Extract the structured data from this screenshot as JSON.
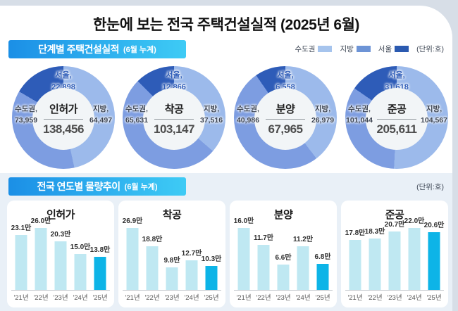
{
  "page": {
    "title": "한눈에 보는 전국 주택건설실적 (2025년 6월)"
  },
  "section1": {
    "header": "단계별 주택건설실적",
    "header_sub": "(6월 누계)",
    "unit": "(단위:호)",
    "legend": {
      "items": [
        {
          "label": "수도권",
          "color": "#a6c4ed"
        },
        {
          "label": "지방",
          "color": "#6d94d6"
        },
        {
          "label": "서울",
          "color": "#2b5ab0"
        }
      ]
    },
    "donut_colors": {
      "sudogwon": "#7d9de1",
      "jibang": "#9cbaeb",
      "seoul": "#2e5cb8",
      "hole": "#f2f5f7"
    },
    "donuts": [
      {
        "name": "인허가",
        "total": "138,456",
        "left_label": "수도권,",
        "left_value": "73,959",
        "right_label": "지방,",
        "right_value": "64,497",
        "top_label": "서울,",
        "top_value": "22,898"
      },
      {
        "name": "착공",
        "total": "103,147",
        "left_label": "수도권,",
        "left_value": "65,631",
        "right_label": "지방,",
        "right_value": "37,516",
        "top_label": "서울,",
        "top_value": "12,866"
      },
      {
        "name": "분양",
        "total": "67,965",
        "left_label": "수도권,",
        "left_value": "40,986",
        "right_label": "지방,",
        "right_value": "26,979",
        "top_label": "서울,",
        "top_value": "6,558"
      },
      {
        "name": "준공",
        "total": "205,611",
        "left_label": "수도권,",
        "left_value": "101,044",
        "right_label": "지방,",
        "right_value": "104,567",
        "top_label": "서울,",
        "top_value": "31,618"
      }
    ]
  },
  "section2": {
    "header": "전국 연도별 물량추이",
    "header_sub": "(6월 누계)",
    "unit": "(단위:호)",
    "bar_color": "#bfe8f2",
    "highlight_color": "#0db4e7"
  },
  "chart_data": [
    {
      "type": "pie",
      "title": "인허가",
      "labels": [
        "수도권",
        "지방",
        "서울"
      ],
      "values": [
        73959,
        64497,
        22898
      ],
      "total": 138456,
      "annotation": "서울 is shown as a dark sub-slice of 수도권"
    },
    {
      "type": "pie",
      "title": "착공",
      "labels": [
        "수도권",
        "지방",
        "서울"
      ],
      "values": [
        65631,
        37516,
        12866
      ],
      "total": 103147
    },
    {
      "type": "pie",
      "title": "분양",
      "labels": [
        "수도권",
        "지방",
        "서울"
      ],
      "values": [
        40986,
        26979,
        6558
      ],
      "total": 67965
    },
    {
      "type": "pie",
      "title": "준공",
      "labels": [
        "수도권",
        "지방",
        "서울"
      ],
      "values": [
        101044,
        104567,
        31618
      ],
      "total": 205611
    },
    {
      "type": "bar",
      "title": "인허가",
      "categories": [
        "'21년",
        "'22년",
        "'23년",
        "'24년",
        "'25년"
      ],
      "values": [
        23.1,
        26.0,
        20.3,
        15.0,
        13.8
      ],
      "value_labels": [
        "23.1만",
        "26.0만",
        "20.3만",
        "15.0만",
        "13.8만"
      ],
      "unit": "만",
      "highlight_index": 4
    },
    {
      "type": "bar",
      "title": "착공",
      "categories": [
        "'21년",
        "'22년",
        "'23년",
        "'24년",
        "'25년"
      ],
      "values": [
        26.9,
        18.8,
        9.8,
        12.7,
        10.3
      ],
      "value_labels": [
        "26.9만",
        "18.8만",
        "9.8만",
        "12.7만",
        "10.3만"
      ],
      "unit": "만",
      "highlight_index": 4
    },
    {
      "type": "bar",
      "title": "분양",
      "categories": [
        "'21년",
        "'22년",
        "'23년",
        "'24년",
        "'25년"
      ],
      "values": [
        16.0,
        11.7,
        6.6,
        11.2,
        6.8
      ],
      "value_labels": [
        "16.0만",
        "11.7만",
        "6.6만",
        "11.2만",
        "6.8만"
      ],
      "unit": "만",
      "highlight_index": 4
    },
    {
      "type": "bar",
      "title": "준공",
      "categories": [
        "'21년",
        "'22년",
        "'23년",
        "'24년",
        "'25년"
      ],
      "values": [
        17.8,
        18.3,
        20.7,
        22.0,
        20.6
      ],
      "value_labels": [
        "17.8만",
        "18.3만",
        "20.7만",
        "22.0만",
        "20.6만"
      ],
      "unit": "만",
      "highlight_index": 4
    }
  ]
}
